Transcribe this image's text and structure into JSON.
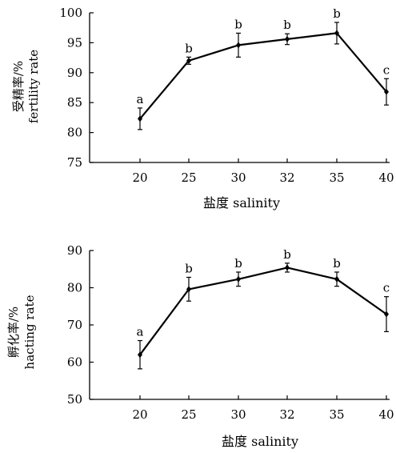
{
  "chart_data": [
    {
      "type": "line",
      "categories": [
        "20",
        "25",
        "30",
        "32",
        "35",
        "40"
      ],
      "values": [
        82.3,
        92.0,
        94.6,
        95.6,
        96.6,
        86.8
      ],
      "errors": [
        1.8,
        0.6,
        2.0,
        0.9,
        1.8,
        2.2
      ],
      "significance": [
        "a",
        "b",
        "b",
        "b",
        "b",
        "c"
      ],
      "ylim": [
        75,
        100
      ],
      "yticks": [
        "75",
        "80",
        "85",
        "90",
        "95",
        "100"
      ],
      "ylabel_cn": "受精率/%",
      "ylabel_en": "fertility rate",
      "xlabel": "盐度 salinity"
    },
    {
      "type": "line",
      "categories": [
        "20",
        "25",
        "30",
        "32",
        "35",
        "40"
      ],
      "values": [
        62.0,
        79.6,
        82.3,
        85.4,
        82.3,
        72.9
      ],
      "errors": [
        3.8,
        3.2,
        1.9,
        1.2,
        1.9,
        4.7
      ],
      "significance": [
        "a",
        "b",
        "b",
        "b",
        "b",
        "c"
      ],
      "ylim": [
        50,
        90
      ],
      "yticks": [
        "50",
        "60",
        "70",
        "80",
        "90"
      ],
      "ylabel_cn": "孵化率/%",
      "ylabel_en": "hacting rate",
      "xlabel": "盐度 salinity"
    }
  ]
}
